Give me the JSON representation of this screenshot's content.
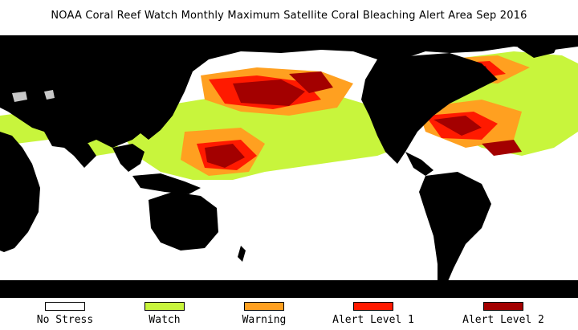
{
  "title": "NOAA Coral Reef Watch Monthly Maximum Satellite Coral Bleaching Alert Area   Sep 2016",
  "legend": [
    {
      "label": "No Stress",
      "color": "#ffffff"
    },
    {
      "label": "Watch",
      "color": "#c8f53c"
    },
    {
      "label": "Warning",
      "color": "#ffa020"
    },
    {
      "label": "Alert Level 1",
      "color": "#ff1a00"
    },
    {
      "label": "Alert Level 2",
      "color": "#a30000"
    }
  ],
  "colors": {
    "land": "#000000",
    "no_data": "#c8c8c8",
    "ocean_no_stress": "#ffffff"
  }
}
